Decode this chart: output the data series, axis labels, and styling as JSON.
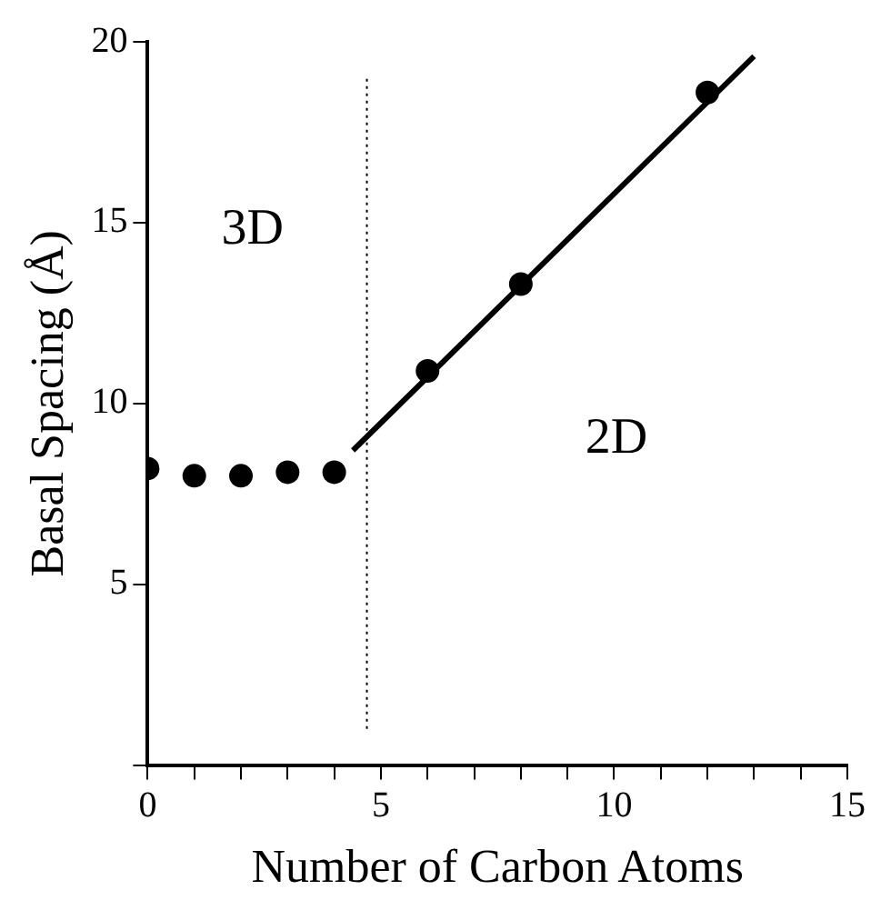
{
  "chart_data": {
    "type": "scatter",
    "xlabel": "Number of Carbon Atoms",
    "ylabel": "Basal Spacing (Å)",
    "xlim": [
      0,
      15
    ],
    "ylim": [
      0,
      20
    ],
    "xticks": [
      0,
      {
        "value": 1,
        "label": null
      },
      {
        "value": 2,
        "label": null
      },
      {
        "value": 3,
        "label": null
      },
      {
        "value": 4,
        "label": null
      },
      5,
      {
        "value": 6,
        "label": null
      },
      {
        "value": 7,
        "label": null
      },
      {
        "value": 8,
        "label": null
      },
      {
        "value": 9,
        "label": null
      },
      10,
      {
        "value": 11,
        "label": null
      },
      {
        "value": 12,
        "label": null
      },
      {
        "value": 13,
        "label": null
      },
      {
        "value": 14,
        "label": null
      },
      15
    ],
    "yticks": [
      {
        "value": 0,
        "label": null
      },
      5,
      10,
      15,
      20
    ],
    "grid": false,
    "legend": false,
    "marker": "circle",
    "series": [
      {
        "type": "scatter",
        "color": "#000000",
        "x": [
          0,
          1,
          2,
          3,
          4,
          6,
          8,
          12
        ],
        "values": [
          8.2,
          8.0,
          8.0,
          8.1,
          8.1,
          10.9,
          13.3,
          18.6
        ]
      },
      {
        "type": "line",
        "color": "#000000",
        "marker": "none",
        "x": [
          4.4,
          13
        ],
        "values": [
          8.7,
          19.6
        ]
      }
    ],
    "ref_lines": [
      {
        "axis": "x",
        "value": 4.7,
        "label": null,
        "color": "#000000",
        "line_style": "dotted"
      }
    ],
    "annotations": [
      "3D",
      "2D"
    ]
  }
}
